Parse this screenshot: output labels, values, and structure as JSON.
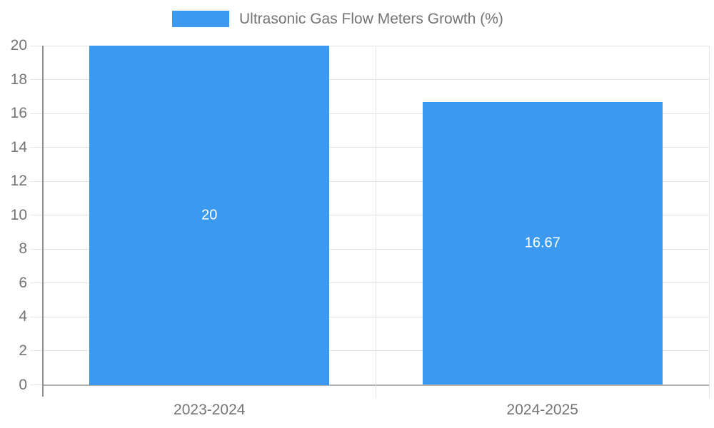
{
  "legend": {
    "label": "Ultrasonic Gas Flow Meters Growth (%)"
  },
  "colors": {
    "bar": "#3B99EF",
    "text": "#757575",
    "grid": "#E4E4E4",
    "baseline": "#AFAFAF",
    "axis": "#8F8F8F",
    "bar_label": "#FFFFFF",
    "background": "#FFFFFF"
  },
  "chart_data": {
    "type": "bar",
    "title": "Ultrasonic Gas Flow Meters Growth (%)",
    "categories": [
      "2023-2024",
      "2024-2025"
    ],
    "series": [
      {
        "name": "Ultrasonic Gas Flow Meters Growth (%)",
        "values": [
          20,
          16.67
        ],
        "value_labels": [
          "20",
          "16.67"
        ]
      }
    ],
    "xlabel": "",
    "ylabel": "",
    "ylim": [
      0,
      20
    ],
    "ytick_step": 2,
    "ytick_labels": [
      "0",
      "2",
      "4",
      "6",
      "8",
      "10",
      "12",
      "14",
      "16",
      "18",
      "20"
    ],
    "grid": true,
    "legend_position": "top"
  }
}
